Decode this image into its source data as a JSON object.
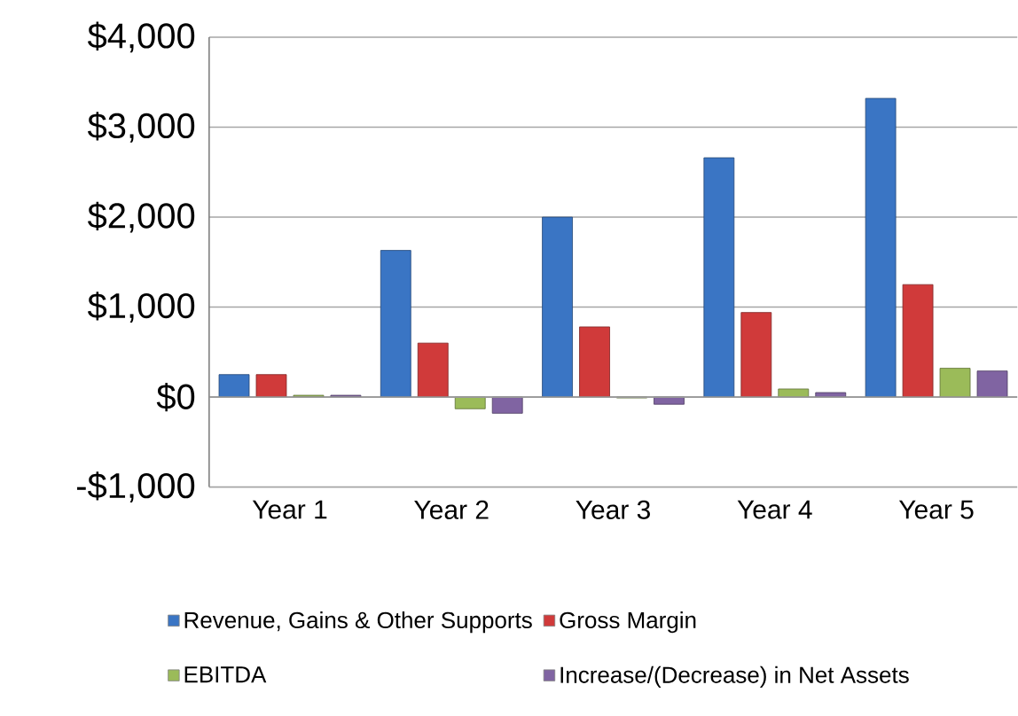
{
  "chart_data": {
    "type": "bar",
    "categories": [
      "Year 1",
      "Year 2",
      "Year 3",
      "Year 4",
      "Year 5"
    ],
    "series": [
      {
        "name": "Revenue, Gains & Other Supports",
        "color": "#3a75c4",
        "values": [
          250,
          1630,
          2000,
          2660,
          3320
        ]
      },
      {
        "name": "Gross Margin",
        "color": "#d03a3a",
        "values": [
          250,
          600,
          780,
          940,
          1250
        ]
      },
      {
        "name": "EBITDA",
        "color": "#9bbb59",
        "values": [
          20,
          -130,
          -10,
          90,
          320
        ]
      },
      {
        "name": "Increase/(Decrease) in Net Assets",
        "color": "#8064a2",
        "values": [
          20,
          -180,
          -80,
          50,
          290
        ]
      }
    ],
    "ylim": [
      -1000,
      4000
    ],
    "yticks": [
      {
        "value": -1000,
        "label": "-$1,000"
      },
      {
        "value": 0,
        "label": "$0"
      },
      {
        "value": 1000,
        "label": "$1,000"
      },
      {
        "value": 2000,
        "label": "$2,000"
      },
      {
        "value": 3000,
        "label": "$3,000"
      },
      {
        "value": 4000,
        "label": "$4,000"
      }
    ],
    "grid": "y",
    "legend": "bottom"
  }
}
